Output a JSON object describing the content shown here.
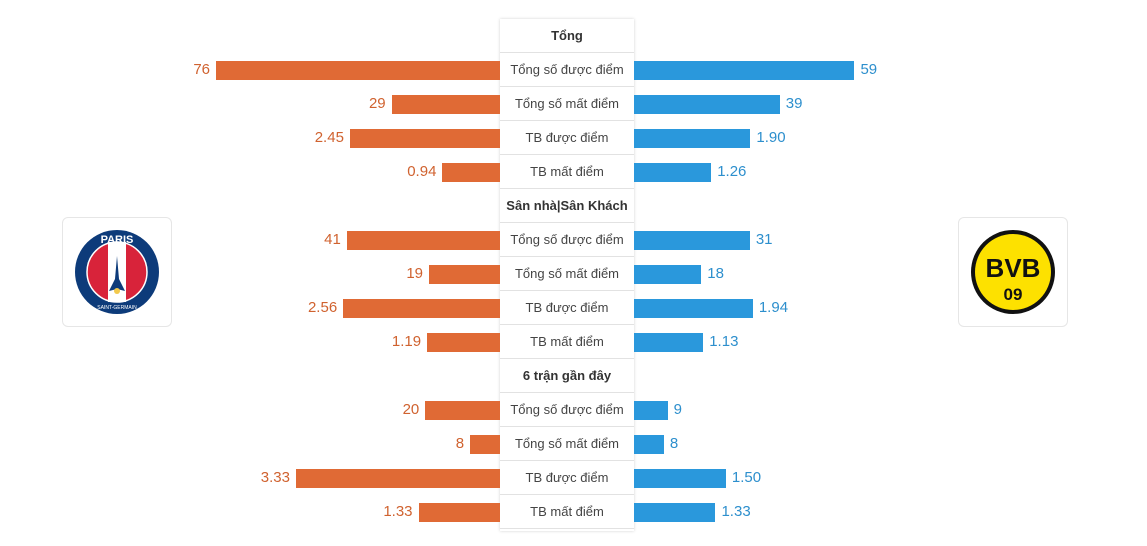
{
  "colors": {
    "home": "#e06a35",
    "away": "#2a98dc"
  },
  "logos": {
    "home": {
      "name": "PARIS",
      "sub": "SAINT-GERMAIN"
    },
    "away": {
      "top": "BVB",
      "bottom": "09"
    }
  },
  "chart_data": {
    "type": "bar",
    "orientation": "horizontal-diverging",
    "groups": [
      {
        "title": "Tổng",
        "rows": [
          {
            "label": "Tổng số được điểm",
            "home": 76,
            "home_label": "76",
            "away": 59,
            "away_label": "59"
          },
          {
            "label": "Tổng số mất điểm",
            "home": 29,
            "home_label": "29",
            "away": 39,
            "away_label": "39"
          },
          {
            "label": "TB được điểm",
            "home": 2.45,
            "home_label": "2.45",
            "away": 1.9,
            "away_label": "1.90"
          },
          {
            "label": "TB mất điểm",
            "home": 0.94,
            "home_label": "0.94",
            "away": 1.26,
            "away_label": "1.26"
          }
        ]
      },
      {
        "title": "Sân nhà|Sân Khách",
        "rows": [
          {
            "label": "Tổng số được điểm",
            "home": 41,
            "home_label": "41",
            "away": 31,
            "away_label": "31"
          },
          {
            "label": "Tổng số mất điểm",
            "home": 19,
            "home_label": "19",
            "away": 18,
            "away_label": "18"
          },
          {
            "label": "TB được điểm",
            "home": 2.56,
            "home_label": "2.56",
            "away": 1.94,
            "away_label": "1.94"
          },
          {
            "label": "TB mất điểm",
            "home": 1.19,
            "home_label": "1.19",
            "away": 1.13,
            "away_label": "1.13"
          }
        ]
      },
      {
        "title": "6 trận gần đây",
        "rows": [
          {
            "label": "Tổng số được điểm",
            "home": 20,
            "home_label": "20",
            "away": 9,
            "away_label": "9"
          },
          {
            "label": "Tổng số mất điểm",
            "home": 8,
            "home_label": "8",
            "away": 8,
            "away_label": "8"
          },
          {
            "label": "TB được điểm",
            "home": 3.33,
            "home_label": "3.33",
            "away": 1.5,
            "away_label": "1.50"
          },
          {
            "label": "TB mất điểm",
            "home": 1.33,
            "home_label": "1.33",
            "away": 1.33,
            "away_label": "1.33"
          }
        ]
      }
    ]
  }
}
